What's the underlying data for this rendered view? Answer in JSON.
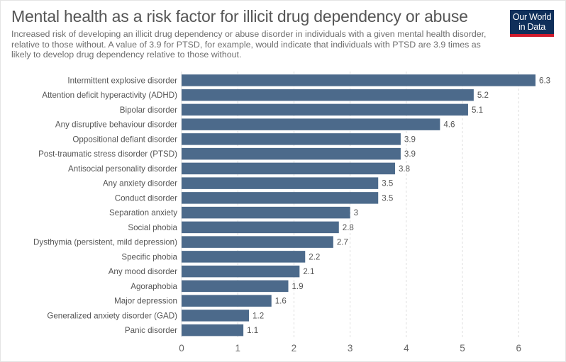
{
  "header": {
    "title": "Mental health as a risk factor for illicit drug dependency or abuse",
    "subtitle": "Increased risk of developing an illicit drug dependency or abuse disorder in individuals with a given mental health disorder, relative to those without. A value of 3.9 for PTSD, for example, would indicate that individuals with PTSD are 3.9 times as likely to develop drug dependency relative to those without."
  },
  "logo": {
    "line1": "Our World",
    "line2": "in Data"
  },
  "colors": {
    "bar": "#4c6a8b",
    "grid": "#dddddd",
    "axis": "#666666",
    "label": "#555555",
    "logo_bg": "#0f2f5a",
    "logo_accent": "#cf1b2c"
  },
  "chart_data": {
    "type": "bar",
    "orientation": "horizontal",
    "title": "Mental health as a risk factor for illicit drug dependency or abuse",
    "xlabel": "",
    "ylabel": "",
    "xlim": [
      0,
      6.3
    ],
    "xticks": [
      0,
      1,
      2,
      3,
      4,
      5,
      6
    ],
    "grid": true,
    "categories": [
      "Intermittent explosive disorder",
      "Attention deficit hyperactivity (ADHD)",
      "Bipolar disorder",
      "Any disruptive behaviour disorder",
      "Oppositional defiant disorder",
      "Post-traumatic stress disorder (PTSD)",
      "Antisocial personality disorder",
      "Any anxiety disorder",
      "Conduct disorder",
      "Separation anxiety",
      "Social phobia",
      "Dysthymia (persistent, mild depression)",
      "Specific phobia",
      "Any mood disorder",
      "Agoraphobia",
      "Major depression",
      "Generalized anxiety disorder (GAD)",
      "Panic disorder"
    ],
    "values": [
      6.3,
      5.2,
      5.1,
      4.6,
      3.9,
      3.9,
      3.8,
      3.5,
      3.5,
      3,
      2.8,
      2.7,
      2.2,
      2.1,
      1.9,
      1.6,
      1.2,
      1.1
    ],
    "value_labels": [
      "6.3",
      "5.2",
      "5.1",
      "4.6",
      "3.9",
      "3.9",
      "3.8",
      "3.5",
      "3.5",
      "3",
      "2.8",
      "2.7",
      "2.2",
      "2.1",
      "1.9",
      "1.6",
      "1.2",
      "1.1"
    ]
  }
}
